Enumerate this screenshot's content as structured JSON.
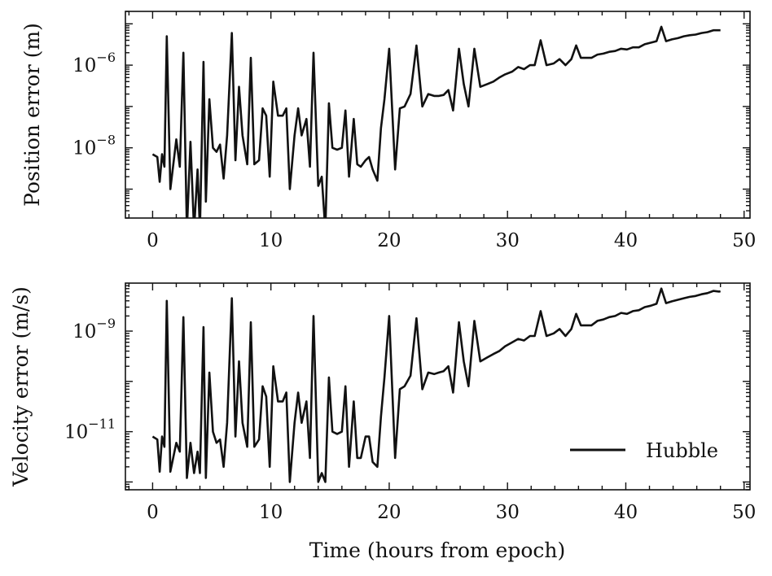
{
  "chart_data": [
    {
      "type": "line",
      "title": "",
      "xlabel": "",
      "ylabel": "Position error (m)",
      "yscale": "log",
      "xlim": [
        -2.3,
        50.5
      ],
      "ylim": [
        2e-10,
        2e-05
      ],
      "xticks": [
        0,
        10,
        20,
        30,
        40,
        50
      ],
      "xtick_labels": [
        "0",
        "10",
        "20",
        "30",
        "40",
        "50"
      ],
      "yticks": [
        1e-08,
        1e-06
      ],
      "ytick_labels": [
        {
          "base": "10",
          "exp": "−8"
        },
        {
          "base": "10",
          "exp": "−6"
        }
      ],
      "series": [
        {
          "name": "Hubble",
          "x": [
            0.0,
            0.4,
            0.6,
            0.8,
            1.0,
            1.2,
            1.5,
            2.0,
            2.3,
            2.6,
            2.9,
            3.2,
            3.5,
            3.8,
            4.0,
            4.3,
            4.5,
            4.8,
            5.1,
            5.4,
            5.7,
            6.0,
            6.3,
            6.7,
            7.0,
            7.3,
            7.6,
            8.0,
            8.3,
            8.6,
            9.0,
            9.3,
            9.6,
            9.9,
            10.2,
            10.6,
            11.0,
            11.3,
            11.6,
            12.0,
            12.3,
            12.6,
            13.0,
            13.3,
            13.6,
            14.0,
            14.3,
            14.6,
            14.9,
            15.2,
            15.6,
            16.0,
            16.3,
            16.6,
            17.0,
            17.3,
            17.6,
            18.0,
            18.3,
            18.6,
            19.0,
            19.3,
            19.6,
            20.0,
            20.5,
            20.9,
            21.3,
            21.8,
            22.3,
            22.8,
            23.3,
            23.8,
            24.2,
            24.6,
            25.0,
            25.4,
            25.9,
            26.3,
            26.7,
            27.2,
            27.7,
            28.3,
            28.8,
            29.3,
            29.8,
            30.4,
            30.9,
            31.4,
            31.9,
            32.3,
            32.8,
            33.3,
            33.9,
            34.4,
            34.9,
            35.4,
            35.8,
            36.2,
            36.6,
            37.1,
            37.6,
            38.1,
            38.6,
            39.1,
            39.6,
            40.1,
            40.6,
            41.1,
            41.6,
            42.1,
            42.6,
            43.0,
            43.4,
            43.9,
            44.4,
            44.9,
            45.4,
            45.9,
            46.4,
            46.9,
            47.4,
            47.9,
            48.0
          ],
          "values": [
            7e-09,
            6e-09,
            1.5e-09,
            7e-09,
            3.5e-09,
            5e-06,
            1e-09,
            1.6e-08,
            3.5e-09,
            2e-06,
            1e-10,
            1.4e-08,
            1e-10,
            3e-09,
            1e-10,
            1.2e-06,
            5e-10,
            1.5e-07,
            1e-08,
            8e-09,
            1.2e-08,
            1.8e-09,
            2e-08,
            6e-06,
            5e-09,
            3e-07,
            2e-08,
            4e-09,
            1.5e-06,
            4e-09,
            5e-09,
            9e-08,
            6e-08,
            2e-09,
            4e-07,
            6e-08,
            6e-08,
            9e-08,
            1e-09,
            2e-08,
            9e-08,
            2e-08,
            5e-08,
            3.5e-09,
            2e-06,
            1.2e-09,
            2e-09,
            1e-10,
            1.2e-07,
            1e-08,
            9e-09,
            1e-08,
            8e-08,
            2e-09,
            5e-08,
            4e-09,
            3.5e-09,
            5e-09,
            6e-09,
            3e-09,
            1.6e-09,
            3e-08,
            1.5e-07,
            2.5e-06,
            3e-09,
            9e-08,
            1e-07,
            2e-07,
            3e-06,
            1e-07,
            2e-07,
            1.8e-07,
            1.8e-07,
            1.9e-07,
            2.5e-07,
            8e-08,
            2.5e-06,
            3.5e-07,
            1e-07,
            2.5e-06,
            3e-07,
            3.5e-07,
            4e-07,
            5e-07,
            6e-07,
            7e-07,
            9e-07,
            8e-07,
            1e-06,
            1e-06,
            4e-06,
            1e-06,
            1.1e-06,
            1.4e-06,
            1e-06,
            1.4e-06,
            3e-06,
            1.5e-06,
            1.5e-06,
            1.5e-06,
            1.8e-06,
            1.9e-06,
            2.1e-06,
            2.2e-06,
            2.5e-06,
            2.4e-06,
            2.7e-06,
            2.7e-06,
            3.2e-06,
            3.5e-06,
            3.8e-06,
            8.5e-06,
            3.8e-06,
            4.2e-06,
            4.5e-06,
            5e-06,
            5.3e-06,
            5.5e-06,
            6e-06,
            6.3e-06,
            7e-06,
            7e-06,
            7e-06
          ]
        }
      ]
    },
    {
      "type": "line",
      "title": "",
      "xlabel": "Time (hours from epoch)",
      "ylabel": "Velocity error (m/s)",
      "yscale": "log",
      "xlim": [
        -2.3,
        50.5
      ],
      "ylim": [
        7e-13,
        9e-09
      ],
      "xticks": [
        0,
        10,
        20,
        30,
        40,
        50
      ],
      "xtick_labels": [
        "0",
        "10",
        "20",
        "30",
        "40",
        "50"
      ],
      "yticks": [
        1e-11,
        1e-09
      ],
      "ytick_labels": [
        {
          "base": "10",
          "exp": "−11"
        },
        {
          "base": "10",
          "exp": "−9"
        }
      ],
      "legend": {
        "label": "Hubble",
        "placement": "lower-right"
      },
      "series": [
        {
          "name": "Hubble",
          "x": [
            0.0,
            0.4,
            0.6,
            0.8,
            1.0,
            1.2,
            1.5,
            2.0,
            2.3,
            2.6,
            2.9,
            3.2,
            3.5,
            3.8,
            4.0,
            4.3,
            4.5,
            4.8,
            5.1,
            5.4,
            5.7,
            6.0,
            6.3,
            6.7,
            7.0,
            7.3,
            7.6,
            8.0,
            8.3,
            8.6,
            9.0,
            9.3,
            9.6,
            9.9,
            10.2,
            10.6,
            11.0,
            11.3,
            11.6,
            12.0,
            12.3,
            12.6,
            13.0,
            13.3,
            13.6,
            14.0,
            14.3,
            14.6,
            14.9,
            15.2,
            15.6,
            16.0,
            16.3,
            16.6,
            17.0,
            17.3,
            17.6,
            18.0,
            18.3,
            18.6,
            19.0,
            19.3,
            19.6,
            20.0,
            20.5,
            20.9,
            21.3,
            21.8,
            22.3,
            22.8,
            23.3,
            23.8,
            24.2,
            24.6,
            25.0,
            25.4,
            25.9,
            26.3,
            26.7,
            27.2,
            27.7,
            28.3,
            28.8,
            29.3,
            29.8,
            30.4,
            30.9,
            31.4,
            31.9,
            32.3,
            32.8,
            33.3,
            33.9,
            34.4,
            34.9,
            35.4,
            35.8,
            36.2,
            36.6,
            37.1,
            37.6,
            38.1,
            38.6,
            39.1,
            39.6,
            40.1,
            40.6,
            41.1,
            41.6,
            42.1,
            42.6,
            43.0,
            43.4,
            43.9,
            44.4,
            44.9,
            45.4,
            45.9,
            46.4,
            46.9,
            47.4,
            47.9,
            48.0
          ],
          "values": [
            8e-12,
            7e-12,
            1.6e-12,
            8e-12,
            5e-12,
            4e-09,
            1.6e-12,
            6e-12,
            4e-12,
            1.9e-09,
            1.2e-12,
            6e-12,
            1.5e-12,
            4e-12,
            1.5e-12,
            1.2e-09,
            1.2e-12,
            1.5e-10,
            1e-11,
            6e-12,
            7e-12,
            2e-12,
            1.5e-11,
            4.5e-09,
            8e-12,
            2.5e-10,
            1.5e-11,
            5e-12,
            1.5e-09,
            5e-12,
            7e-12,
            8e-11,
            5e-11,
            2e-12,
            2e-10,
            4e-11,
            4e-11,
            6e-11,
            1e-12,
            1.5e-11,
            6e-11,
            1.5e-11,
            4e-11,
            3e-12,
            2e-09,
            1e-12,
            1.5e-12,
            1e-12,
            1.2e-10,
            1e-11,
            9e-12,
            1e-11,
            8e-11,
            2e-12,
            4e-11,
            3e-12,
            3e-12,
            8e-12,
            8e-12,
            2.5e-12,
            2e-12,
            2e-11,
            1.2e-10,
            2e-09,
            3e-12,
            7e-11,
            8e-11,
            1.3e-10,
            1.8e-09,
            7e-11,
            1.5e-10,
            1.4e-10,
            1.5e-10,
            1.6e-10,
            2e-10,
            6e-11,
            1.5e-09,
            2.5e-10,
            8e-11,
            1.6e-09,
            2.5e-10,
            3e-10,
            3.5e-10,
            4e-10,
            5e-10,
            6e-10,
            7e-10,
            6.5e-10,
            8e-10,
            8e-10,
            2.5e-09,
            8e-10,
            9e-10,
            1.1e-09,
            8e-10,
            1.1e-09,
            2.2e-09,
            1.3e-09,
            1.3e-09,
            1.3e-09,
            1.6e-09,
            1.7e-09,
            1.9e-09,
            2e-09,
            2.3e-09,
            2.2e-09,
            2.5e-09,
            2.6e-09,
            3e-09,
            3.2e-09,
            3.5e-09,
            7e-09,
            3.6e-09,
            3.9e-09,
            4.2e-09,
            4.5e-09,
            4.8e-09,
            5e-09,
            5.4e-09,
            5.7e-09,
            6.3e-09,
            6.1e-09,
            6.2e-09
          ]
        }
      ]
    }
  ]
}
